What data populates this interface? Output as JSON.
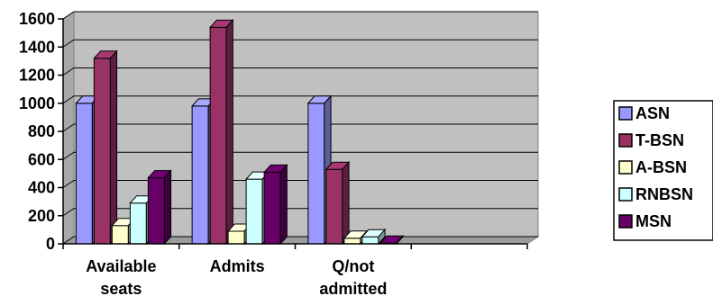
{
  "chart_data": {
    "type": "bar",
    "categories": [
      [
        "Available",
        "seats"
      ],
      [
        "Admits"
      ],
      [
        "Q/not",
        "admitted"
      ],
      [
        ""
      ]
    ],
    "series": [
      {
        "name": "ASN",
        "color": "#9999FF",
        "values": [
          1000,
          980,
          1000,
          null
        ]
      },
      {
        "name": "T-BSN",
        "color": "#993366",
        "values": [
          1320,
          1540,
          530,
          null
        ]
      },
      {
        "name": "A-BSN",
        "color": "#FFFFCC",
        "values": [
          130,
          90,
          40,
          null
        ]
      },
      {
        "name": "RNBSN",
        "color": "#CCFFFF",
        "values": [
          290,
          460,
          50,
          null
        ]
      },
      {
        "name": "MSN",
        "color": "#660066",
        "values": [
          470,
          510,
          5,
          null
        ]
      }
    ],
    "yticks": [
      "0",
      "200",
      "400",
      "600",
      "800",
      "1000",
      "1200",
      "1400",
      "1600"
    ],
    "ylim": [
      0,
      1600
    ],
    "grid": true,
    "legend": "right",
    "plot_background": "#C0C0C0"
  }
}
